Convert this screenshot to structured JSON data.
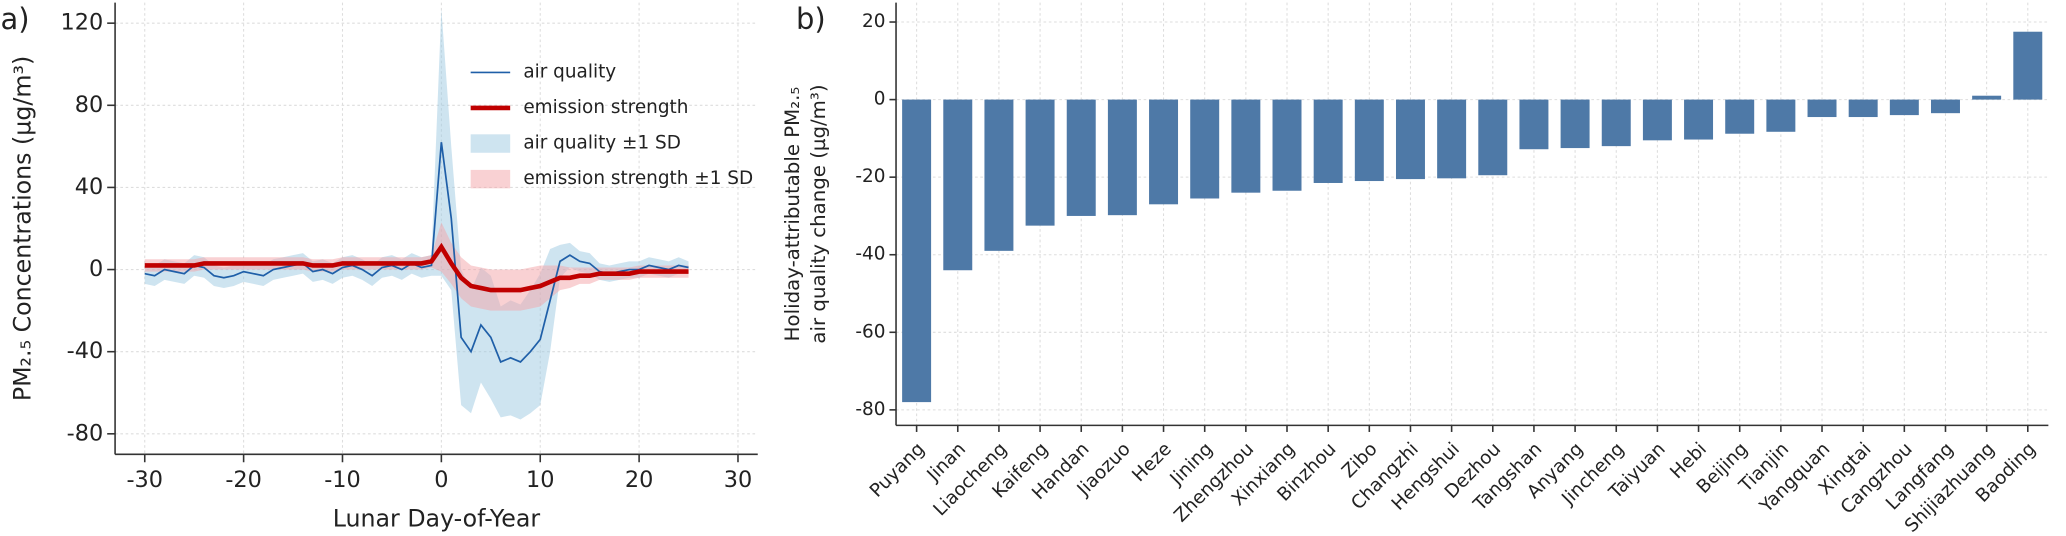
{
  "chart_data": [
    {
      "type": "line",
      "title": "a)",
      "xlabel": "Lunar Day-of-Year",
      "ylabel": "PM₂.₅ Concentrations (µg/m³)",
      "x": [
        -30,
        -29,
        -28,
        -27,
        -26,
        -25,
        -24,
        -23,
        -22,
        -21,
        -20,
        -19,
        -18,
        -17,
        -16,
        -15,
        -14,
        -13,
        -12,
        -11,
        -10,
        -9,
        -8,
        -7,
        -6,
        -5,
        -4,
        -3,
        -2,
        -1,
        0,
        1,
        2,
        3,
        4,
        5,
        6,
        7,
        8,
        9,
        10,
        11,
        12,
        13,
        14,
        15,
        16,
        17,
        18,
        19,
        20,
        21,
        22,
        23,
        24,
        25
      ],
      "series": [
        {
          "name": "air quality",
          "color": "#1f5fa8",
          "values": [
            -2,
            -3,
            0,
            -1,
            -2,
            2,
            1,
            -3,
            -4,
            -3,
            -1,
            -2,
            -3,
            0,
            1,
            2,
            3,
            -1,
            0,
            -2,
            1,
            2,
            0,
            -3,
            1,
            2,
            0,
            3,
            1,
            2,
            62,
            25,
            -33,
            -40,
            -27,
            -33,
            -45,
            -43,
            -45,
            -40,
            -34,
            -15,
            4,
            7,
            4,
            3,
            -1,
            -2,
            -1,
            0,
            0,
            2,
            1,
            0,
            2,
            1
          ],
          "band": {
            "name": "air quality ±1 SD",
            "color": "#9ecae1",
            "sd": [
              5,
              5,
              5,
              5,
              5,
              5,
              5,
              5,
              5,
              5,
              5,
              5,
              5,
              5,
              5,
              5,
              5,
              5,
              5,
              5,
              5,
              5,
              5,
              5,
              5,
              5,
              5,
              5,
              5,
              5,
              65,
              35,
              33,
              30,
              28,
              30,
              27,
              28,
              28,
              30,
              32,
              25,
              8,
              6,
              5,
              5,
              4,
              4,
              4,
              4,
              4,
              4,
              4,
              4,
              4,
              3
            ]
          }
        },
        {
          "name": "emission strength",
          "color": "#c00000",
          "values": [
            2,
            2,
            2,
            2,
            2,
            2,
            3,
            3,
            3,
            3,
            3,
            3,
            3,
            3,
            3,
            3,
            3,
            2,
            2,
            2,
            3,
            3,
            3,
            3,
            3,
            3,
            3,
            3,
            3,
            4,
            11,
            3,
            -4,
            -8,
            -9,
            -10,
            -10,
            -10,
            -10,
            -9,
            -8,
            -6,
            -4,
            -4,
            -3,
            -3,
            -2,
            -2,
            -2,
            -2,
            -1,
            -1,
            -1,
            -1,
            -1,
            -1
          ],
          "band": {
            "name": "emission strength ±1 SD",
            "color": "#f4a3a8",
            "sd": [
              3,
              3,
              3,
              3,
              3,
              3,
              3,
              3,
              3,
              3,
              3,
              3,
              3,
              3,
              3,
              3,
              3,
              3,
              3,
              3,
              3,
              3,
              3,
              3,
              3,
              3,
              3,
              3,
              3,
              3,
              12,
              10,
              10,
              10,
              10,
              10,
              10,
              10,
              10,
              10,
              10,
              8,
              6,
              5,
              4,
              4,
              3,
              3,
              3,
              3,
              3,
              3,
              3,
              3,
              3,
              3
            ]
          }
        }
      ],
      "xlim": [
        -33,
        32
      ],
      "xticks": [
        -30,
        -20,
        -10,
        0,
        10,
        20,
        30
      ],
      "ylim": [
        -90,
        130
      ],
      "yticks": [
        -80,
        -40,
        0,
        40,
        80,
        120
      ],
      "grid": true
    },
    {
      "type": "bar",
      "title": "b)",
      "ylabel": [
        "Holiday-attributable PM₂.₅",
        "air quality change (µg/m³)"
      ],
      "categories": [
        "Puyang",
        "Jinan",
        "Liaocheng",
        "Kaifeng",
        "Handan",
        "Jiaozuo",
        "Heze",
        "Jining",
        "Zhengzhou",
        "Xinxiang",
        "Binzhou",
        "Zibo",
        "Changzhi",
        "Hengshui",
        "Dezhou",
        "Tangshan",
        "Anyang",
        "Jincheng",
        "Taiyuan",
        "Hebi",
        "Beijing",
        "Tianjin",
        "Yangquan",
        "Xingtai",
        "Cangzhou",
        "Langfang",
        "Shijiazhuang",
        "Baoding"
      ],
      "values": [
        -78,
        -44,
        -39,
        -32.5,
        -30,
        -29.8,
        -27,
        -25.5,
        -24,
        -23.5,
        -21.5,
        -21,
        -20.5,
        -20.3,
        -19.5,
        -12.8,
        -12.5,
        -12,
        -10.5,
        -10.3,
        -8.8,
        -8.3,
        -4.5,
        -4.5,
        -4,
        -3.5,
        1,
        17.5
      ],
      "color": "#4e79a7",
      "ylim": [
        -84,
        25
      ],
      "yticks": [
        -80,
        -60,
        -40,
        -20,
        0,
        20
      ],
      "grid": true
    }
  ]
}
